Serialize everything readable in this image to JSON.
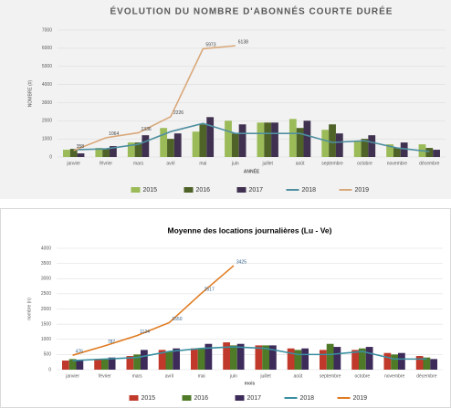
{
  "chart_data": [
    {
      "type": "bar",
      "title": "ÉVOLUTION DU NOMBRE D'ABONNÉS COURTE DURÉE",
      "y_label": "NOMBRE (#)",
      "x_label": "ANNÉE",
      "categories": [
        "janvier",
        "février",
        "mars",
        "avril",
        "mai",
        "juin",
        "juillet",
        "août",
        "septembre",
        "octobre",
        "novembre",
        "décembre"
      ],
      "ylim": [
        0,
        7000
      ],
      "yticks": [
        0,
        1000,
        2000,
        3000,
        4000,
        5000,
        6000,
        7000
      ],
      "grid": true,
      "series": [
        {
          "name": "2015",
          "color": "#9bbb59",
          "values": [
            400,
            500,
            800,
            1600,
            1400,
            2000,
            1900,
            2100,
            1500,
            900,
            700,
            700
          ]
        },
        {
          "name": "2016",
          "color": "#4f6228",
          "values": [
            450,
            450,
            800,
            1000,
            1800,
            1300,
            1900,
            1600,
            1800,
            1000,
            500,
            500
          ]
        },
        {
          "name": "2017",
          "color": "#403151",
          "values": [
            200,
            600,
            1200,
            1300,
            2200,
            1800,
            1900,
            2000,
            1300,
            1200,
            800,
            400
          ]
        },
        {
          "name": "2018",
          "color": "#4f8fa0",
          "type": "line",
          "values": [
            400,
            450,
            700,
            1400,
            1850,
            1300,
            1300,
            1300,
            800,
            900,
            500,
            300
          ]
        },
        {
          "name": "2019",
          "color": "#d9a87a",
          "type": "line",
          "data_labels": true,
          "values": [
            358,
            1064,
            1336,
            2226,
            5973,
            6138,
            null,
            null,
            null,
            null,
            null,
            null
          ]
        }
      ]
    },
    {
      "type": "bar",
      "title": "Moyenne des locations journalières (Lu - Ve)",
      "y_label": "nombre (n)",
      "x_label": "mois",
      "categories": [
        "janvier",
        "février",
        "mars",
        "avril",
        "mai",
        "juin",
        "juillet",
        "août",
        "septembre",
        "octobre",
        "novembre",
        "décembre"
      ],
      "ylim": [
        0,
        4000
      ],
      "yticks": [
        0,
        500,
        1000,
        1500,
        2000,
        2500,
        3000,
        3500,
        4000
      ],
      "grid": true,
      "series": [
        {
          "name": "2015",
          "color": "#c0392b",
          "values": [
            300,
            350,
            450,
            650,
            700,
            900,
            800,
            700,
            650,
            650,
            550,
            450
          ]
        },
        {
          "name": "2016",
          "color": "#4f7a28",
          "values": [
            350,
            350,
            500,
            600,
            700,
            800,
            800,
            650,
            850,
            700,
            500,
            400
          ]
        },
        {
          "name": "2017",
          "color": "#3d2b5a",
          "values": [
            300,
            400,
            650,
            700,
            850,
            850,
            800,
            700,
            750,
            750,
            550,
            350
          ]
        },
        {
          "name": "2018",
          "color": "#3a8fa0",
          "type": "line",
          "values": [
            300,
            350,
            400,
            600,
            700,
            750,
            700,
            500,
            500,
            600,
            350,
            350
          ]
        },
        {
          "name": "2019",
          "color": "#e07b20",
          "type": "line",
          "data_labels": true,
          "values": [
            476,
            787,
            1124,
            1550,
            2517,
            3425,
            null,
            null,
            null,
            null,
            null,
            null
          ]
        }
      ]
    }
  ]
}
